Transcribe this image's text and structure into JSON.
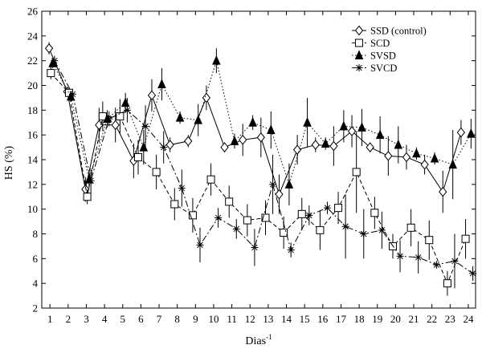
{
  "chart_data": {
    "type": "line",
    "title": "",
    "xlabel": "Dias",
    "xlabel_superscript": "-1",
    "ylabel": "HS (%)",
    "xlim": [
      0.55,
      24.4
    ],
    "ylim": [
      2,
      26
    ],
    "x_ticks": [
      1,
      2,
      3,
      4,
      5,
      6,
      7,
      8,
      9,
      10,
      11,
      12,
      13,
      14,
      15,
      16,
      17,
      18,
      19,
      20,
      21,
      22,
      23,
      24
    ],
    "y_ticks": [
      2,
      4,
      6,
      8,
      10,
      12,
      14,
      16,
      18,
      20,
      22,
      24,
      26
    ],
    "legend_position": "top-right",
    "series": [
      {
        "name": "SSD (control)",
        "marker": "diamond",
        "line_style": "solid",
        "x": [
          0.95,
          1.95,
          2.95,
          3.7,
          4.6,
          5.6,
          6.6,
          7.6,
          8.6,
          9.6,
          10.6,
          11.6,
          12.6,
          13.6,
          14.6,
          15.6,
          16.6,
          17.6,
          18.6,
          19.6,
          20.6,
          21.6,
          22.6,
          23.6
        ],
        "y": [
          23.0,
          19.5,
          11.6,
          16.8,
          16.8,
          13.9,
          19.2,
          15.2,
          15.5,
          19.0,
          15.0,
          15.6,
          15.8,
          11.2,
          14.8,
          15.2,
          15.1,
          16.3,
          15.0,
          14.3,
          14.2,
          13.6,
          11.4,
          16.2
        ],
        "err": [
          0.5,
          0.3,
          1.0,
          1.4,
          1.4,
          1.4,
          1.3,
          0.6,
          0.5,
          1.0,
          0.4,
          1.3,
          1.6,
          1.6,
          1.2,
          0.6,
          1.6,
          1.3,
          0.4,
          1.6,
          1.0,
          0.8,
          1.7,
          1.0
        ]
      },
      {
        "name": "SCD",
        "marker": "square",
        "line_style": "dashed",
        "x": [
          1.05,
          2.05,
          3.05,
          3.9,
          4.85,
          5.85,
          6.85,
          7.85,
          8.85,
          9.85,
          10.85,
          11.85,
          12.85,
          13.85,
          14.85,
          15.85,
          16.85,
          17.85,
          18.85,
          19.85,
          20.85,
          21.85,
          22.85,
          23.85
        ],
        "y": [
          21.0,
          19.4,
          11.0,
          17.5,
          17.5,
          14.2,
          13.0,
          10.4,
          9.5,
          12.4,
          10.6,
          9.1,
          9.3,
          8.1,
          9.6,
          8.3,
          10.1,
          13.0,
          9.7,
          7.0,
          8.5,
          7.5,
          4.0,
          7.6
        ],
        "err": [
          0.5,
          0.3,
          0.6,
          1.2,
          1.4,
          1.4,
          1.4,
          1.3,
          1.4,
          1.3,
          1.3,
          1.3,
          1.4,
          1.3,
          1.3,
          1.6,
          1.3,
          3.3,
          1.3,
          1.0,
          1.5,
          1.6,
          1.0,
          1.6
        ]
      },
      {
        "name": "SVSD",
        "marker": "triangle",
        "line_style": "dotted",
        "x": [
          1.15,
          2.15,
          3.15,
          4.15,
          5.15,
          6.15,
          7.15,
          8.15,
          9.15,
          10.15,
          11.15,
          12.15,
          13.15,
          14.15,
          15.15,
          16.15,
          17.15,
          18.15,
          19.15,
          20.15,
          21.15,
          22.15,
          23.15,
          24.15
        ],
        "y": [
          21.8,
          19.1,
          12.4,
          17.3,
          18.6,
          15.0,
          20.1,
          17.4,
          17.2,
          22.0,
          15.5,
          17.0,
          16.4,
          12.0,
          17.0,
          15.3,
          16.7,
          16.6,
          16.0,
          15.2,
          14.5,
          14.1,
          13.6,
          16.1
        ],
        "err": [
          0.4,
          0.4,
          0.6,
          0.7,
          0.8,
          1.4,
          1.3,
          0.5,
          1.3,
          1.0,
          0.6,
          0.6,
          1.5,
          1.7,
          2.0,
          0.5,
          1.3,
          1.5,
          1.5,
          1.5,
          0.5,
          0.5,
          2.8,
          1.2
        ]
      },
      {
        "name": "SVCD",
        "marker": "asterisk",
        "line_style": "dash-dot",
        "x": [
          1.25,
          2.25,
          3.25,
          4.25,
          5.25,
          6.25,
          7.25,
          8.25,
          9.25,
          10.25,
          11.25,
          12.25,
          13.25,
          14.25,
          15.25,
          16.25,
          17.25,
          18.25,
          19.25,
          20.25,
          21.25,
          22.25,
          23.25,
          24.25
        ],
        "y": [
          22.0,
          19.3,
          12.3,
          17.3,
          18.0,
          16.7,
          15.0,
          11.7,
          7.1,
          9.3,
          8.4,
          6.9,
          12.0,
          6.7,
          9.5,
          10.1,
          8.6,
          8.0,
          8.3,
          6.2,
          6.1,
          5.5,
          5.8,
          4.8
        ],
        "err": [
          0.4,
          0.4,
          1.0,
          0.6,
          1.0,
          1.7,
          1.3,
          1.5,
          1.4,
          0.8,
          0.8,
          1.5,
          2.4,
          0.6,
          0.8,
          0.5,
          2.6,
          2.0,
          1.5,
          1.3,
          1.3,
          0.3,
          2.2,
          0.6
        ]
      }
    ]
  }
}
